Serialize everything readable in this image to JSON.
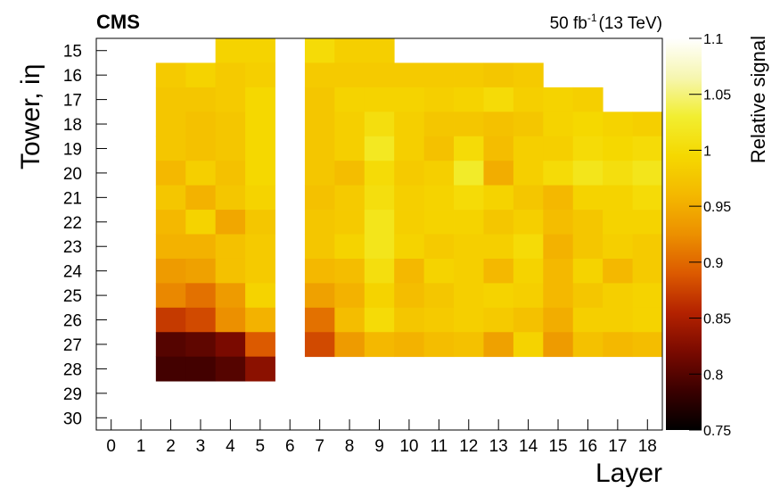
{
  "chart_data": {
    "type": "heatmap",
    "experiment_label": "CMS",
    "lumi_value": "50 fb",
    "lumi_exponent": "-1",
    "lumi_energy": "(13 TeV)",
    "xlabel": "Layer",
    "ylabel": "Tower, iη",
    "zlabel": "Relative signal",
    "xlim": [
      0,
      19
    ],
    "ylim": [
      15,
      31
    ],
    "zlim": [
      0.75,
      1.1
    ],
    "y_inverted": true,
    "x_ticks": [
      "0",
      "1",
      "2",
      "3",
      "4",
      "5",
      "6",
      "7",
      "8",
      "9",
      "10",
      "11",
      "12",
      "13",
      "14",
      "15",
      "16",
      "17",
      "18"
    ],
    "y_ticks": [
      "15",
      "16",
      "17",
      "18",
      "19",
      "20",
      "21",
      "22",
      "23",
      "24",
      "25",
      "26",
      "27",
      "28",
      "29",
      "30"
    ],
    "z_ticks": [
      "1.1",
      "1.05",
      "1",
      "0.95",
      "0.9",
      "0.85",
      "0.8",
      "0.75"
    ],
    "colormap": [
      "#000000",
      "#3a0000",
      "#7a0a00",
      "#b42200",
      "#dc5a00",
      "#ec9000",
      "#f4b800",
      "#f5d800",
      "#f2ee30",
      "#f6f6b0",
      "#ffffff"
    ],
    "rows": [
      {
        "tower": 15,
        "values": [
          null,
          null,
          null,
          0.99,
          0.99,
          null,
          1.0,
          0.985,
          0.985,
          null,
          null,
          null,
          null,
          null,
          null,
          null,
          null,
          null
        ]
      },
      {
        "tower": 16,
        "values": [
          null,
          0.98,
          0.99,
          0.98,
          0.985,
          null,
          0.98,
          0.98,
          0.98,
          0.98,
          0.98,
          0.98,
          0.975,
          0.98,
          null,
          null,
          null,
          null
        ]
      },
      {
        "tower": 17,
        "values": [
          null,
          0.975,
          0.975,
          0.98,
          0.995,
          null,
          0.975,
          0.99,
          0.99,
          0.99,
          0.985,
          0.99,
          1.0,
          0.985,
          0.99,
          0.985,
          null,
          null
        ]
      },
      {
        "tower": 18,
        "values": [
          null,
          0.975,
          0.97,
          0.975,
          0.995,
          null,
          0.975,
          0.985,
          1.005,
          0.985,
          0.975,
          0.975,
          0.97,
          0.975,
          0.99,
          0.995,
          0.99,
          0.985
        ]
      },
      {
        "tower": 19,
        "values": [
          null,
          0.975,
          0.97,
          0.975,
          0.995,
          null,
          0.975,
          0.985,
          1.02,
          0.985,
          0.97,
          1.0,
          0.965,
          0.985,
          0.985,
          1.0,
          0.995,
          1.0
        ]
      },
      {
        "tower": 20,
        "values": [
          null,
          0.96,
          0.985,
          0.97,
          0.995,
          null,
          0.975,
          0.965,
          1.0,
          0.98,
          0.985,
          1.025,
          0.95,
          0.985,
          1.0,
          1.015,
          1.005,
          1.015
        ]
      },
      {
        "tower": 21,
        "values": [
          null,
          0.975,
          0.955,
          0.975,
          0.99,
          null,
          0.97,
          0.98,
          1.005,
          0.985,
          0.99,
          1.0,
          0.99,
          0.975,
          0.96,
          0.99,
          0.99,
          1.0
        ]
      },
      {
        "tower": 22,
        "values": [
          null,
          0.96,
          0.99,
          0.945,
          0.975,
          null,
          0.975,
          0.98,
          1.015,
          0.985,
          0.99,
          0.99,
          0.975,
          0.985,
          0.965,
          0.975,
          0.99,
          0.99
        ]
      },
      {
        "tower": 23,
        "values": [
          null,
          0.955,
          0.955,
          0.97,
          0.98,
          null,
          0.975,
          0.99,
          1.015,
          0.99,
          0.98,
          0.985,
          0.985,
          1.0,
          0.955,
          0.975,
          0.985,
          0.98
        ]
      },
      {
        "tower": 24,
        "values": [
          null,
          0.935,
          0.94,
          0.97,
          0.98,
          null,
          0.96,
          0.965,
          1.005,
          0.96,
          0.99,
          0.985,
          0.96,
          0.99,
          0.96,
          0.99,
          0.96,
          0.98
        ]
      },
      {
        "tower": 25,
        "values": [
          null,
          0.92,
          0.905,
          0.935,
          0.99,
          null,
          0.94,
          0.955,
          0.99,
          0.965,
          0.975,
          0.985,
          0.99,
          0.985,
          0.96,
          0.975,
          0.985,
          0.99
        ]
      },
      {
        "tower": 26,
        "values": [
          null,
          0.87,
          0.88,
          0.925,
          0.955,
          null,
          0.905,
          0.965,
          1.0,
          0.975,
          0.98,
          0.985,
          0.98,
          0.97,
          0.95,
          0.985,
          0.985,
          0.99
        ]
      },
      {
        "tower": 27,
        "values": [
          null,
          0.8,
          0.805,
          0.82,
          0.89,
          null,
          0.88,
          0.935,
          0.96,
          0.955,
          0.965,
          0.97,
          0.94,
          0.99,
          0.935,
          0.97,
          0.96,
          0.965
        ]
      },
      {
        "tower": 28,
        "values": [
          null,
          0.79,
          0.79,
          0.8,
          0.83,
          null,
          null,
          null,
          null,
          null,
          null,
          null,
          null,
          null,
          null,
          null,
          null,
          null
        ]
      }
    ]
  }
}
